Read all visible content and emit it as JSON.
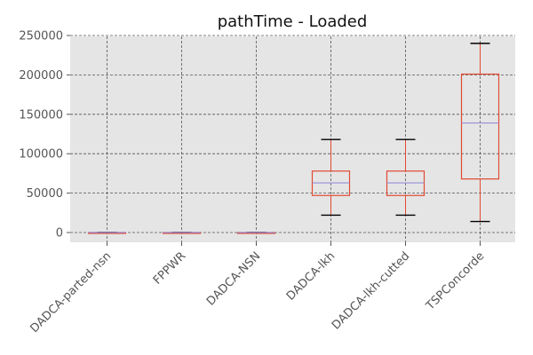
{
  "chart_data": {
    "type": "box",
    "title": "pathTime - Loaded",
    "xlabel": "",
    "ylabel": "",
    "ylim": [
      -12000,
      250000
    ],
    "y_ticks": [
      0,
      50000,
      100000,
      150000,
      200000,
      250000
    ],
    "y_tick_labels": [
      "0",
      "50000",
      "100000",
      "150000",
      "200000",
      "250000"
    ],
    "grid": true,
    "categories": [
      "DADCA-parted-nsn",
      "FPPWR",
      "DADCA-NSN",
      "DADCA-lkh",
      "DADCA-lkh-cutted",
      "TSPConcorde"
    ],
    "boxes": [
      {
        "whisker_low": 0,
        "q1": 0,
        "median": 0,
        "q3": 0,
        "whisker_high": 0
      },
      {
        "whisker_low": 0,
        "q1": 0,
        "median": 0,
        "q3": 0,
        "whisker_high": 0
      },
      {
        "whisker_low": 0,
        "q1": 0,
        "median": 0,
        "q3": 0,
        "whisker_high": 0
      },
      {
        "whisker_low": 22000,
        "q1": 47000,
        "median": 63000,
        "q3": 78000,
        "whisker_high": 118000
      },
      {
        "whisker_low": 22000,
        "q1": 47000,
        "median": 63000,
        "q3": 78000,
        "whisker_high": 118000
      },
      {
        "whisker_low": 14000,
        "q1": 68000,
        "median": 139000,
        "q3": 201000,
        "whisker_high": 240000
      }
    ],
    "colors": {
      "background": "#e5e5e5",
      "box": "#e24a33",
      "median": "#988ed5",
      "whisker_cap": "#000000",
      "grid": "#555555",
      "text": "#555555"
    }
  }
}
